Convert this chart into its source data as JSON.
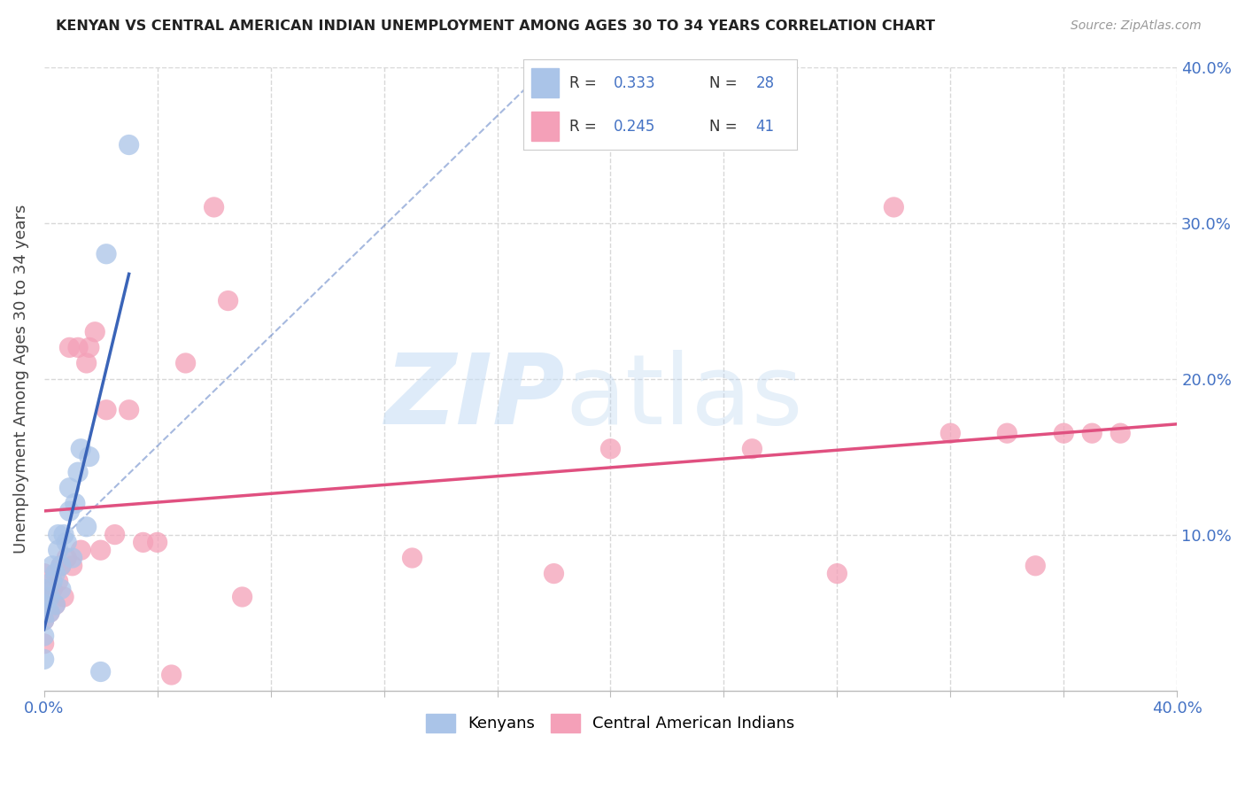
{
  "title": "KENYAN VS CENTRAL AMERICAN INDIAN UNEMPLOYMENT AMONG AGES 30 TO 34 YEARS CORRELATION CHART",
  "source": "Source: ZipAtlas.com",
  "ylabel": "Unemployment Among Ages 30 to 34 years",
  "xlim": [
    0.0,
    0.4
  ],
  "ylim": [
    0.0,
    0.4
  ],
  "kenyan_R": 0.333,
  "kenyan_N": 28,
  "central_R": 0.245,
  "central_N": 41,
  "kenyan_color": "#aac4e8",
  "kenyan_line_color": "#3a64b8",
  "central_color": "#f4a0b8",
  "central_line_color": "#e05080",
  "background_color": "#ffffff",
  "grid_color": "#d8d8d8",
  "kenyan_x": [
    0.0,
    0.0,
    0.0,
    0.0,
    0.0,
    0.002,
    0.002,
    0.003,
    0.003,
    0.004,
    0.004,
    0.005,
    0.005,
    0.006,
    0.006,
    0.007,
    0.008,
    0.009,
    0.009,
    0.01,
    0.011,
    0.012,
    0.013,
    0.015,
    0.016,
    0.02,
    0.022,
    0.03
  ],
  "kenyan_y": [
    0.02,
    0.035,
    0.045,
    0.055,
    0.065,
    0.05,
    0.06,
    0.07,
    0.08,
    0.055,
    0.075,
    0.09,
    0.1,
    0.065,
    0.08,
    0.1,
    0.095,
    0.115,
    0.13,
    0.085,
    0.12,
    0.14,
    0.155,
    0.105,
    0.15,
    0.012,
    0.28,
    0.35
  ],
  "central_x": [
    0.0,
    0.0,
    0.0,
    0.0,
    0.002,
    0.003,
    0.004,
    0.005,
    0.006,
    0.007,
    0.008,
    0.009,
    0.01,
    0.012,
    0.013,
    0.015,
    0.016,
    0.018,
    0.02,
    0.022,
    0.025,
    0.03,
    0.035,
    0.04,
    0.045,
    0.05,
    0.06,
    0.065,
    0.07,
    0.13,
    0.18,
    0.2,
    0.25,
    0.28,
    0.3,
    0.32,
    0.34,
    0.35,
    0.36,
    0.37,
    0.38
  ],
  "central_y": [
    0.03,
    0.045,
    0.06,
    0.075,
    0.05,
    0.065,
    0.055,
    0.07,
    0.08,
    0.06,
    0.085,
    0.22,
    0.08,
    0.22,
    0.09,
    0.21,
    0.22,
    0.23,
    0.09,
    0.18,
    0.1,
    0.18,
    0.095,
    0.095,
    0.01,
    0.21,
    0.31,
    0.25,
    0.06,
    0.085,
    0.075,
    0.155,
    0.155,
    0.075,
    0.31,
    0.165,
    0.165,
    0.08,
    0.165,
    0.165,
    0.165
  ]
}
